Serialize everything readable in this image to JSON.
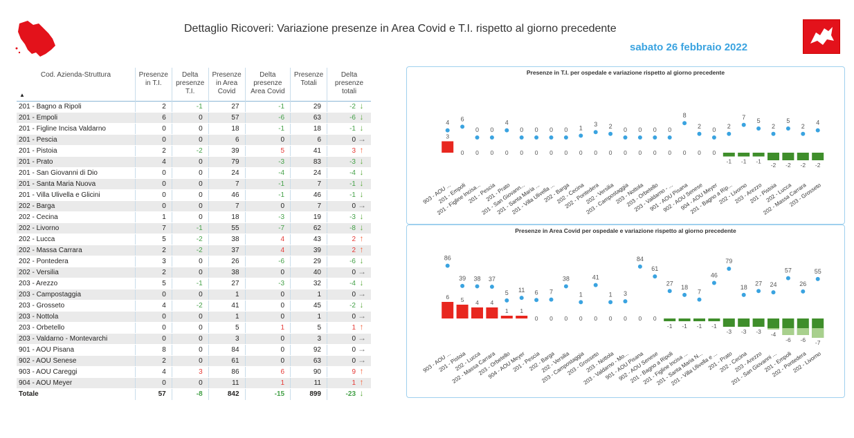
{
  "header": {
    "title": "Dettaglio Ricoveri: Variazione presenze in Area Covid e T.I. rispetto al giorno precedente",
    "date": "sabato 26 febbraio 2022"
  },
  "colors": {
    "accent": "#3aa3e0",
    "dot": "#3aa3e0",
    "positive": "#e53935",
    "negative": "#43a047",
    "bar_pos": "#e8271f",
    "bar_neg": "#3f8e2b"
  },
  "table": {
    "headers": [
      "Cod. Azienda-Struttura",
      "Presenze in T.I.",
      "Delta presenze T.I.",
      "Presenze in Area Covid",
      "Delta presenze Area Covid",
      "Presenze Totali",
      "Delta presenze totali"
    ],
    "rows": [
      [
        "201 - Bagno a Ripoli",
        "2",
        "-1",
        "27",
        "-1",
        "29",
        "-2"
      ],
      [
        "201 - Empoli",
        "6",
        "0",
        "57",
        "-6",
        "63",
        "-6"
      ],
      [
        "201 - Figline Incisa Valdarno",
        "0",
        "0",
        "18",
        "-1",
        "18",
        "-1"
      ],
      [
        "201 - Pescia",
        "0",
        "0",
        "6",
        "0",
        "6",
        "0"
      ],
      [
        "201 - Pistoia",
        "2",
        "-2",
        "39",
        "5",
        "41",
        "3"
      ],
      [
        "201 - Prato",
        "4",
        "0",
        "79",
        "-3",
        "83",
        "-3"
      ],
      [
        "201 - San Giovanni di Dio",
        "0",
        "0",
        "24",
        "-4",
        "24",
        "-4"
      ],
      [
        "201 - Santa Maria Nuova",
        "0",
        "0",
        "7",
        "-1",
        "7",
        "-1"
      ],
      [
        "201 - Villa Ulivella e Glicini",
        "0",
        "0",
        "46",
        "-1",
        "46",
        "-1"
      ],
      [
        "202 - Barga",
        "0",
        "0",
        "7",
        "0",
        "7",
        "0"
      ],
      [
        "202 - Cecina",
        "1",
        "0",
        "18",
        "-3",
        "19",
        "-3"
      ],
      [
        "202 - Livorno",
        "7",
        "-1",
        "55",
        "-7",
        "62",
        "-8"
      ],
      [
        "202 - Lucca",
        "5",
        "-2",
        "38",
        "4",
        "43",
        "2"
      ],
      [
        "202 - Massa Carrara",
        "2",
        "-2",
        "37",
        "4",
        "39",
        "2"
      ],
      [
        "202 - Pontedera",
        "3",
        "0",
        "26",
        "-6",
        "29",
        "-6"
      ],
      [
        "202 - Versilia",
        "2",
        "0",
        "38",
        "0",
        "40",
        "0"
      ],
      [
        "203 - Arezzo",
        "5",
        "-1",
        "27",
        "-3",
        "32",
        "-4"
      ],
      [
        "203 - Campostaggia",
        "0",
        "0",
        "1",
        "0",
        "1",
        "0"
      ],
      [
        "203 - Grosseto",
        "4",
        "-2",
        "41",
        "0",
        "45",
        "-2"
      ],
      [
        "203 - Nottola",
        "0",
        "0",
        "1",
        "0",
        "1",
        "0"
      ],
      [
        "203 - Orbetello",
        "0",
        "0",
        "5",
        "1",
        "5",
        "1"
      ],
      [
        "203 - Valdarno - Montevarchi",
        "0",
        "0",
        "3",
        "0",
        "3",
        "0"
      ],
      [
        "901 - AOU Pisana",
        "8",
        "0",
        "84",
        "0",
        "92",
        "0"
      ],
      [
        "902 - AOU Senese",
        "2",
        "0",
        "61",
        "0",
        "63",
        "0"
      ],
      [
        "903 - AOU Careggi",
        "4",
        "3",
        "86",
        "6",
        "90",
        "9"
      ],
      [
        "904 - AOU Meyer",
        "0",
        "0",
        "11",
        "1",
        "11",
        "1"
      ]
    ],
    "total": [
      "Totale",
      "57",
      "-8",
      "842",
      "-15",
      "899",
      "-23"
    ]
  },
  "chart_data": [
    {
      "type": "bar",
      "title": "Presenze in T.I. per ospedale e variazione rispetto al giorno precedente",
      "categories": [
        "903 - AOU ...",
        "201 - Empoli",
        "201 - Figline Incisa...",
        "201 - Pescia",
        "201 - Prato",
        "201 - San Giovann...",
        "201 - Santa Maria ...",
        "201 - Villa Ulivella ...",
        "202 - Barga",
        "202 - Cecina",
        "202 - Pontedera",
        "202 - Versilia",
        "203 - Campostaggia",
        "203 - Nottola",
        "203 - Orbetello",
        "203 - Valdarno - ...",
        "901 - AOU Pisana",
        "902 - AOU Senese",
        "904 - AOU Meyer",
        "201 - Bagno a Rip...",
        "202 - Livorno",
        "203 - Arezzo",
        "201 - Pistoia",
        "202 - Lucca",
        "202 - Massa Carrara",
        "203 - Grosseto"
      ],
      "presenze": [
        4,
        6,
        0,
        0,
        4,
        0,
        0,
        0,
        0,
        1,
        3,
        2,
        0,
        0,
        0,
        0,
        8,
        2,
        0,
        2,
        7,
        5,
        2,
        5,
        2,
        4
      ],
      "delta": [
        3,
        0,
        0,
        0,
        0,
        0,
        0,
        0,
        0,
        0,
        0,
        0,
        0,
        0,
        0,
        0,
        0,
        0,
        0,
        -1,
        -1,
        -1,
        -2,
        -2,
        -2,
        -2
      ]
    },
    {
      "type": "bar",
      "title": "Presenze in Area Covid per ospedale e variazione rispetto al giorno precedente",
      "categories": [
        "903 - AOU ...",
        "201 - Pistoia",
        "202 - Lucca",
        "202 - Massa Carrara",
        "203 - Orbetello",
        "904 - AOU Meyer",
        "201 - Pescia",
        "202 - Barga",
        "202 - Versilia",
        "203 - Campostaggia",
        "203 - Grosseto",
        "203 - Nottola",
        "203 - Valdarno - Mo...",
        "901 - AOU Pisana",
        "902 - AOU Senese",
        "201 - Bagno a Ripoli",
        "201 - Figline Incisa ...",
        "201 - Santa Maria N...",
        "201 - Villa Ulivella e ...",
        "201 - Prato",
        "202 - Cecina",
        "203 - Arezzo",
        "201 - San Giovanni ...",
        "201 - Empoli",
        "202 - Pontedera",
        "202 - Livorno"
      ],
      "presenze": [
        86,
        39,
        38,
        37,
        5,
        11,
        6,
        7,
        38,
        1,
        41,
        1,
        3,
        84,
        61,
        27,
        18,
        7,
        46,
        79,
        18,
        27,
        24,
        57,
        26,
        55
      ],
      "delta": [
        6,
        5,
        4,
        4,
        1,
        1,
        0,
        0,
        0,
        0,
        0,
        0,
        0,
        0,
        0,
        -1,
        -1,
        -1,
        -1,
        -3,
        -3,
        -3,
        -4,
        -6,
        -6,
        -7
      ]
    }
  ]
}
